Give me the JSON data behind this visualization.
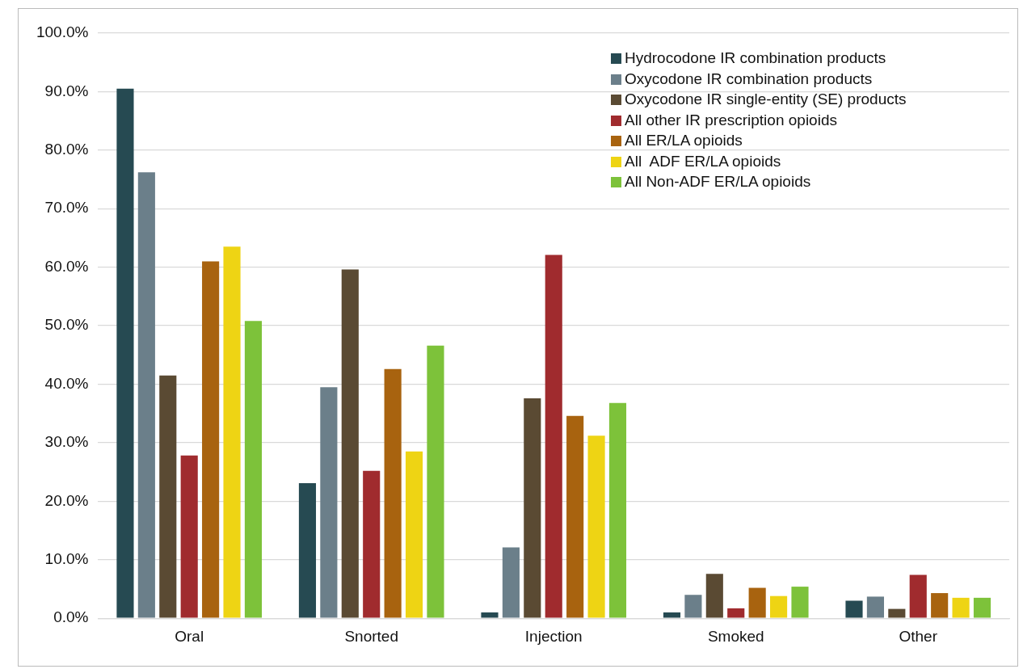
{
  "chart_data": {
    "type": "bar",
    "categories": [
      "Oral",
      "Snorted",
      "Injection",
      "Smoked",
      "Other"
    ],
    "series": [
      {
        "name": "Hydrocodone IR combination products",
        "color": "#264a52",
        "values": [
          90.5,
          23.1,
          1.0,
          1.0,
          3.0
        ]
      },
      {
        "name": "Oxycodone IR combination products",
        "color": "#6b7f8a",
        "values": [
          76.2,
          39.5,
          12.1,
          4.0,
          3.7
        ]
      },
      {
        "name": "Oxycodone IR single-entity (SE) products",
        "color": "#5a4a33",
        "values": [
          41.5,
          59.6,
          37.6,
          7.6,
          1.6
        ]
      },
      {
        "name": "All other IR prescription opioids",
        "color": "#a02b2e",
        "values": [
          27.8,
          25.2,
          62.1,
          1.7,
          7.4
        ]
      },
      {
        "name": "All ER/LA opioids",
        "color": "#a8630f",
        "values": [
          61.0,
          42.6,
          34.6,
          5.2,
          4.3
        ]
      },
      {
        "name": "All  ADF ER/LA opioids",
        "color": "#eed414",
        "values": [
          63.5,
          28.5,
          31.2,
          3.8,
          3.5
        ]
      },
      {
        "name": "All Non-ADF ER/LA opioids",
        "color": "#7dc23a",
        "values": [
          50.8,
          46.6,
          36.8,
          5.4,
          3.5
        ]
      }
    ],
    "ylim": [
      0,
      100
    ],
    "yticks": [
      {
        "value": 0,
        "label": "0.0%"
      },
      {
        "value": 10,
        "label": "10.0%"
      },
      {
        "value": 20,
        "label": "20.0%"
      },
      {
        "value": 30,
        "label": "30.0%"
      },
      {
        "value": 40,
        "label": "40.0%"
      },
      {
        "value": 50,
        "label": "50.0%"
      },
      {
        "value": 60,
        "label": "60.0%"
      },
      {
        "value": 70,
        "label": "70.0%"
      },
      {
        "value": 80,
        "label": "80.0%"
      },
      {
        "value": 90,
        "label": "90.0%"
      },
      {
        "value": 100,
        "label": "100.0%"
      }
    ],
    "grid": "y",
    "legend": "top right"
  }
}
